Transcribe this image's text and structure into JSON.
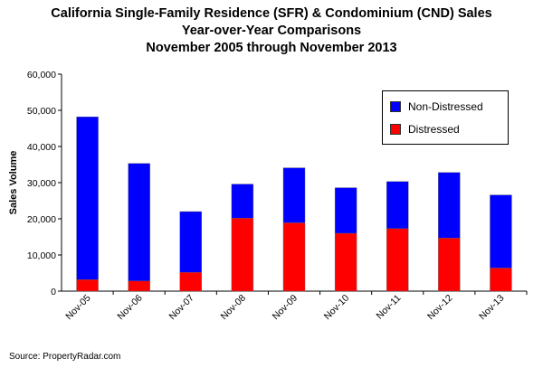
{
  "title_lines": [
    "California Single-Family Residence (SFR) & Condominium (CND) Sales",
    "Year-over-Year Comparisons",
    "November 2005 through November 2013"
  ],
  "source": "Source: PropertyRadar.com",
  "colors": {
    "non_distressed": "#0000ff",
    "distressed": "#ff0000"
  },
  "chart_data": {
    "type": "bar",
    "stacked": true,
    "categories": [
      "Nov-05",
      "Nov-06",
      "Nov-07",
      "Nov-08",
      "Nov-09",
      "Nov-10",
      "Nov-11",
      "Nov-12",
      "Nov-13"
    ],
    "series": [
      {
        "name": "Distressed",
        "color": "#ff0000",
        "values": [
          3200,
          2800,
          5200,
          20200,
          18900,
          16000,
          17300,
          14700,
          6400
        ]
      },
      {
        "name": "Non-Distressed",
        "color": "#0000ff",
        "values": [
          45000,
          32500,
          16800,
          9400,
          15200,
          12600,
          13000,
          18100,
          20200
        ]
      }
    ],
    "title": "California Single-Family Residence (SFR) & Condominium (CND) Sales Year-over-Year Comparisons November 2005 through November 2013",
    "xlabel": "",
    "ylabel": "Sales Volume",
    "ylim": [
      0,
      60000
    ],
    "yticks": [
      "0",
      "10,000",
      "20,000",
      "30,000",
      "40,000",
      "50,000",
      "60,000"
    ],
    "grid": false,
    "legend_position": "top-right",
    "legend": [
      "Non-Distressed",
      "Distressed"
    ]
  }
}
